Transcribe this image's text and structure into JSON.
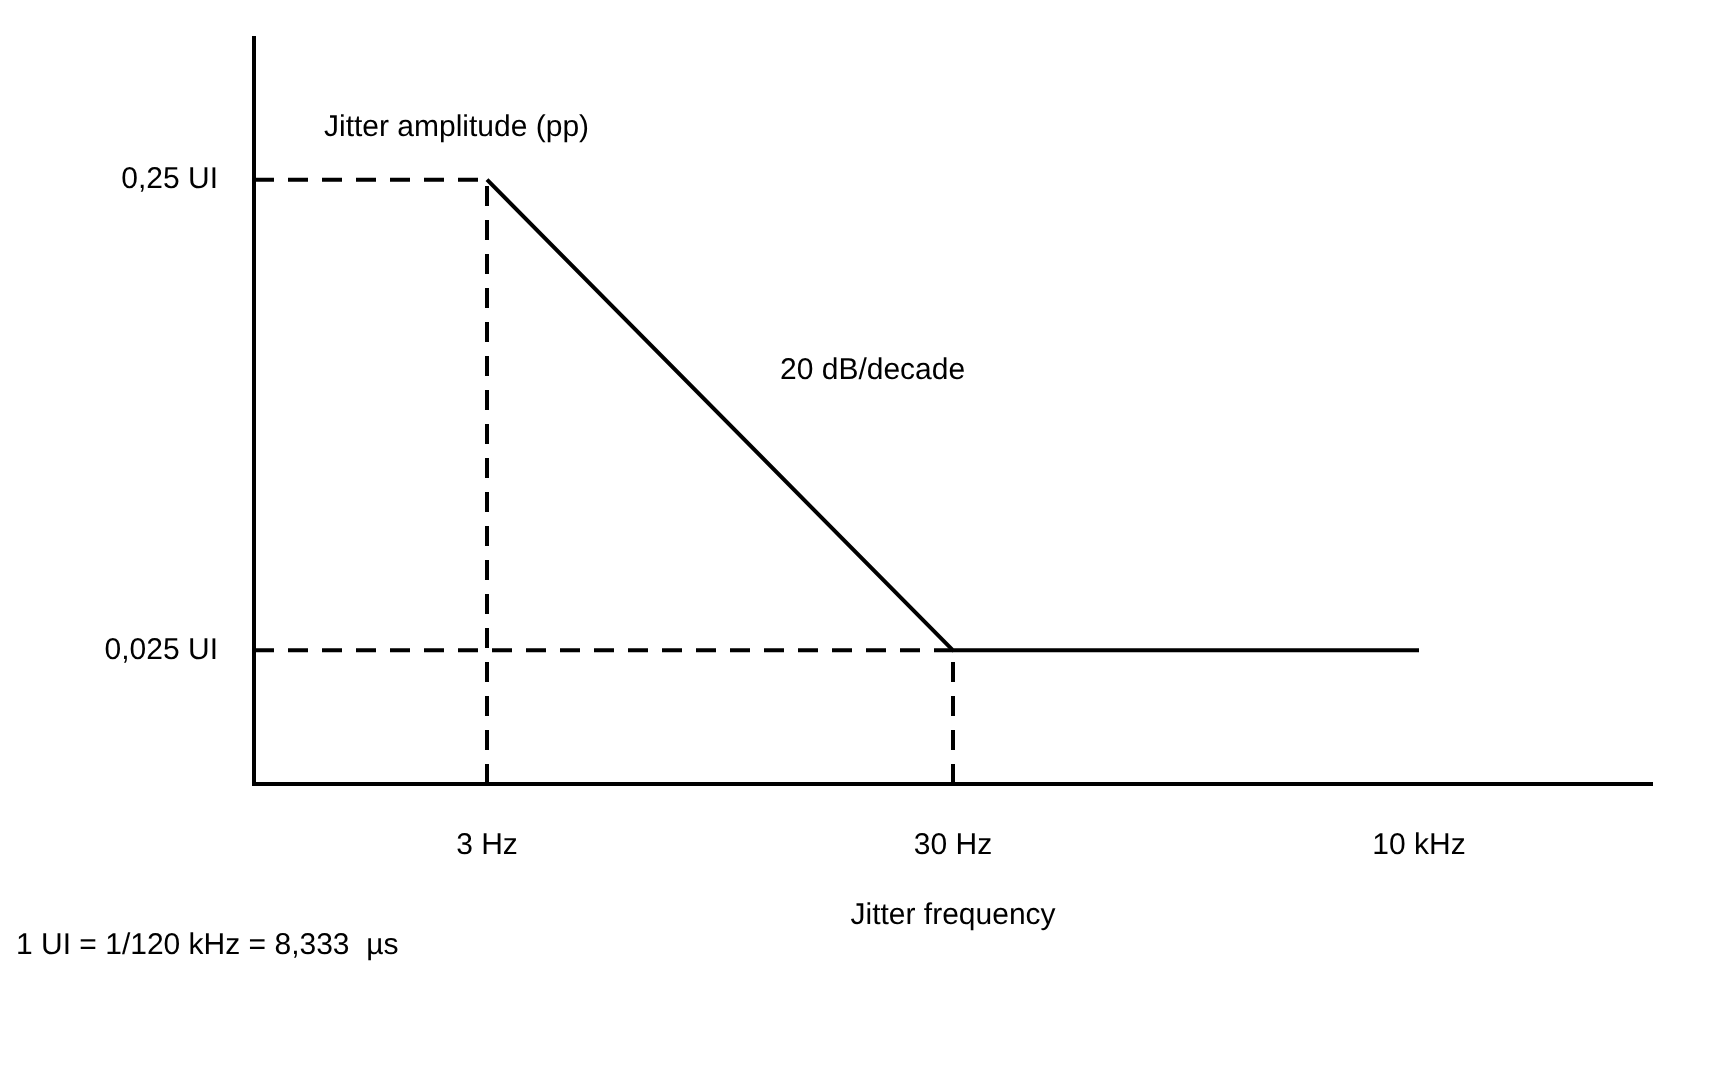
{
  "chart_data": {
    "type": "line",
    "ylabel": "Jitter amplitude (pp)",
    "xlabel": "Jitter frequency",
    "categories": [
      "3 Hz",
      "30 Hz",
      "10 kHz"
    ],
    "series": [
      {
        "color": "#000000",
        "values": [
          0.25,
          0.025,
          0.025
        ]
      }
    ],
    "log": "y",
    "ylim": [
      0.013,
      0.5
    ],
    "yticks": [
      {
        "value": 0.025,
        "label": "0,025 UI"
      },
      {
        "value": 0.25,
        "label": "0,25 UI"
      }
    ],
    "ref_lines": [
      {
        "axis": "y",
        "value": 0.25,
        "line_style": "dashed",
        "color": "#000000"
      },
      {
        "axis": "y",
        "value": 0.025,
        "line_style": "dashed",
        "color": "#000000"
      },
      {
        "axis": "x",
        "value": "3 Hz",
        "line_style": "dashed",
        "color": "#000000"
      },
      {
        "axis": "x",
        "value": "30 Hz",
        "line_style": "dashed",
        "color": "#000000"
      }
    ],
    "annotations": [
      "20 dB/decade",
      "1 UI = 1/120 kHz = 8,333  µs"
    ],
    "grid": false,
    "legend": false,
    "marker": "none",
    "line_style": "solid"
  }
}
